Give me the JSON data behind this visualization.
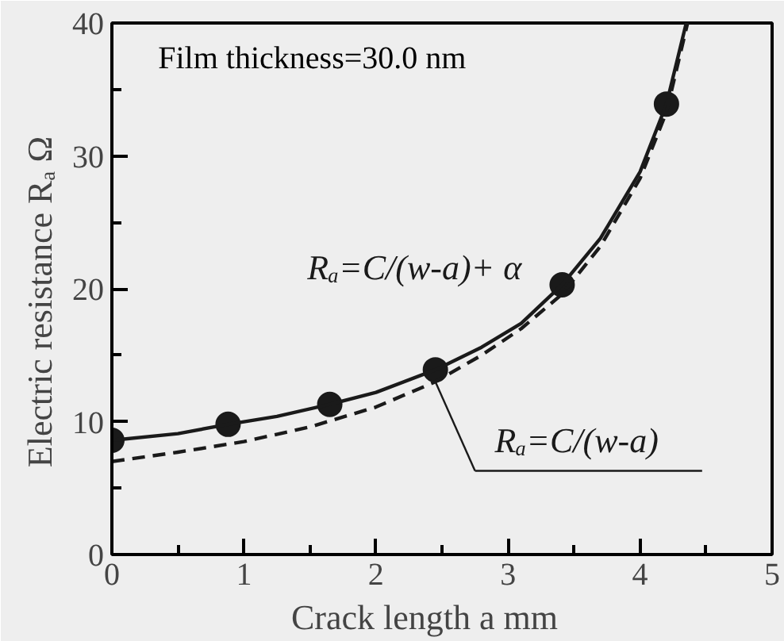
{
  "chart_data": {
    "type": "line",
    "xlabel": "Crack length  a    mm",
    "ylabel": "Electric resistance  Rₐ   Ω",
    "annotations": [
      "Film thickness=30.0 nm"
    ],
    "xlim": [
      0,
      5
    ],
    "ylim": [
      0,
      40
    ],
    "xticks": [
      0,
      1,
      2,
      3,
      4,
      5
    ],
    "yticks": [
      0,
      10,
      20,
      30,
      40
    ],
    "grid": false,
    "series": [
      {
        "type": "scatter",
        "color": "#1a1a1a",
        "marker": "circle",
        "x": [
          0,
          0.88,
          1.65,
          2.45,
          3.41,
          4.2
        ],
        "values": [
          8.6,
          9.8,
          11.3,
          13.9,
          20.3,
          33.9
        ]
      },
      {
        "name": "Rₐ=C/(w-a)+ α",
        "color": "#1a1a1a",
        "line_style": "solid",
        "x": [
          0,
          0.5,
          0.88,
          1.25,
          1.65,
          2,
          2.45,
          2.8,
          3.1,
          3.41,
          3.7,
          4,
          4.2,
          4.35
        ],
        "values": [
          8.6,
          9.1,
          9.8,
          10.4,
          11.3,
          12.2,
          13.9,
          15.6,
          17.4,
          20.3,
          23.8,
          28.8,
          33.9,
          40
        ]
      },
      {
        "name": "Rₐ=C/(w-a)",
        "color": "#1a1a1a",
        "line_style": "dashed",
        "x": [
          0,
          0.5,
          1,
          1.5,
          2,
          2.45,
          2.8,
          3.1,
          3.41,
          3.7,
          4,
          4.2,
          4.36
        ],
        "values": [
          7.0,
          7.7,
          8.5,
          9.6,
          11.1,
          13.0,
          15.0,
          17.0,
          19.6,
          23.2,
          28.3,
          33.3,
          40
        ]
      }
    ]
  }
}
